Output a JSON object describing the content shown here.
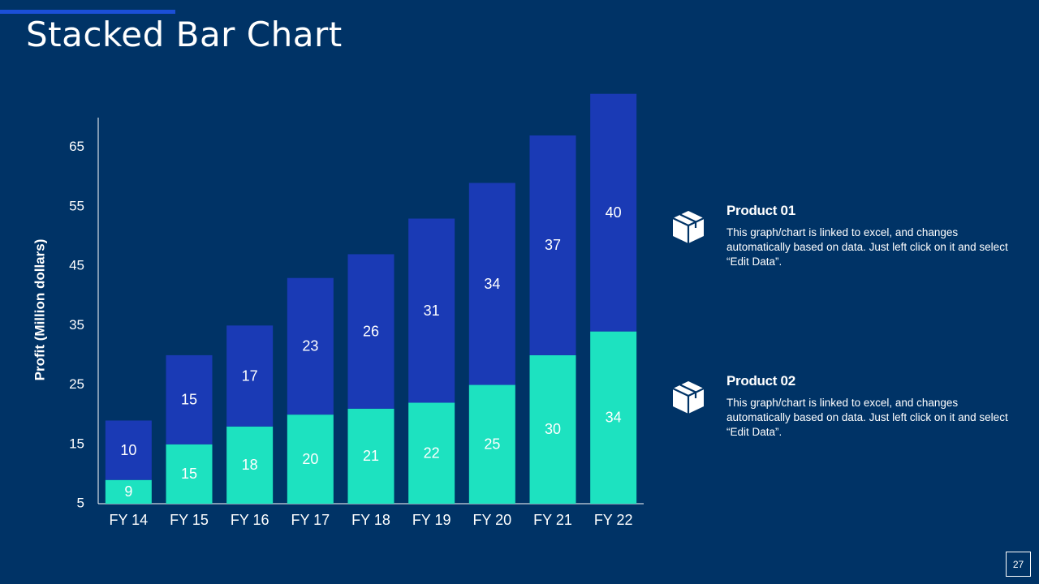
{
  "slide": {
    "title": "Stacked Bar Chart",
    "page_number": "27"
  },
  "legend": [
    {
      "title": "Product 01",
      "description": "This graph/chart is linked to excel, and changes automatically based on data. Just left click on it and select “Edit Data”.",
      "icon": "package-box-icon"
    },
    {
      "title": "Product 02",
      "description": "This graph/chart is linked to excel, and changes automatically based on data. Just left click on it and select “Edit Data”.",
      "icon": "package-box-icon"
    }
  ],
  "colors": {
    "background": "#003366",
    "series_bottom": "#1de2c0",
    "series_top": "#1a3ab5",
    "accent": "#1b4fd6"
  },
  "chart_data": {
    "type": "bar",
    "stacked": true,
    "title": "",
    "xlabel": "",
    "ylabel": "Profit  (Million dollars)",
    "categories": [
      "FY 14",
      "FY 15",
      "FY 16",
      "FY 17",
      "FY 18",
      "FY 19",
      "FY 20",
      "FY 21",
      "FY 22"
    ],
    "series": [
      {
        "name": "Product 02",
        "values": [
          9,
          15,
          18,
          20,
          21,
          22,
          25,
          30,
          34
        ]
      },
      {
        "name": "Product 01",
        "values": [
          10,
          15,
          17,
          23,
          26,
          31,
          34,
          37,
          40
        ]
      }
    ],
    "ylim": [
      5,
      70
    ],
    "yticks": [
      5,
      15,
      25,
      35,
      45,
      55,
      65
    ],
    "grid": false
  }
}
